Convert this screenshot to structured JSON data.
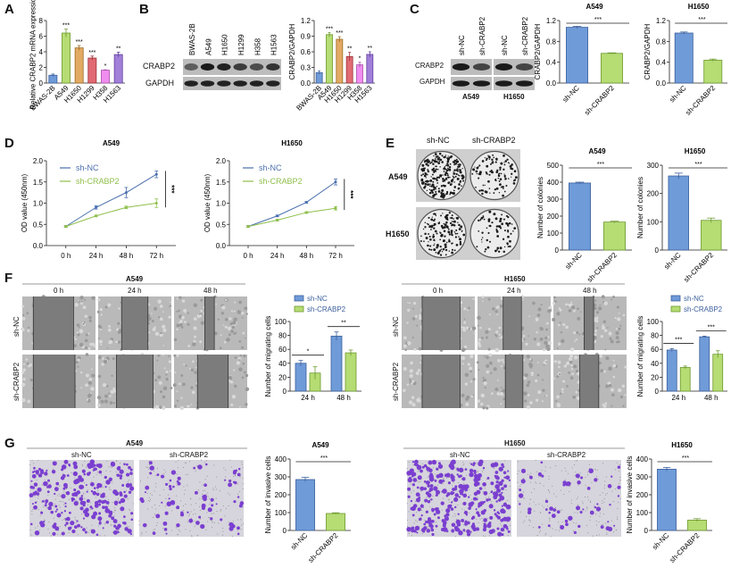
{
  "panels": {
    "A": "A",
    "B": "B",
    "C": "C",
    "D": "D",
    "E": "E",
    "F": "F",
    "G": "G"
  },
  "blots": {
    "B": {
      "lanes": [
        "BWAS-2B",
        "A549",
        "H1650",
        "H1299",
        "H358",
        "H1563"
      ],
      "rows": [
        "CRABP2",
        "GAPDH"
      ]
    },
    "C": {
      "lanes": [
        "sh-NC",
        "sh-CRABP2",
        "sh-NC",
        "sh-CRABP2"
      ],
      "rows": [
        "CRABP2",
        "GAPDH"
      ],
      "cell_lines": [
        "A549",
        "H1650"
      ]
    }
  },
  "colony": {
    "columns": [
      "sh-NC",
      "sh-CRABP2"
    ],
    "rows": [
      "A549",
      "H1650"
    ]
  },
  "wound": {
    "A549": {
      "title": "A549",
      "columns": [
        "0 h",
        "24 h",
        "48 h"
      ],
      "rows": [
        "sh-NC",
        "sh-CRABP2"
      ]
    },
    "H1650": {
      "title": "H1650",
      "columns": [
        "0 h",
        "24 h",
        "48 h"
      ],
      "rows": [
        "sh-NC",
        "sh-CRABP2"
      ]
    }
  },
  "transwell": {
    "A549": {
      "title": "A549",
      "columns": [
        "sh-NC",
        "sh-CRABP2"
      ]
    },
    "H1650": {
      "title": "H1650",
      "columns": [
        "sh-NC",
        "sh-CRABP2"
      ]
    }
  },
  "chart_data": [
    {
      "id": "A",
      "type": "bar",
      "title": "",
      "ylabel": "Relative CRABP2 mRNA expression",
      "ylim": [
        0,
        8
      ],
      "yticks": [
        0,
        2,
        4,
        6,
        8
      ],
      "categories": [
        "BWAS-2B",
        "A549",
        "H1650",
        "H1299",
        "H358",
        "H1563"
      ],
      "values": [
        1.0,
        6.4,
        4.5,
        3.2,
        1.65,
        3.65
      ],
      "errors": [
        0.15,
        0.5,
        0.3,
        0.25,
        0.05,
        0.3
      ],
      "significance": [
        "",
        "***",
        "***",
        "***",
        "*",
        "**"
      ],
      "colors": [
        "#6f9bd8",
        "#b6dc74",
        "#e2aa63",
        "#e06b73",
        "#f08ef0",
        "#a27fd8"
      ]
    },
    {
      "id": "B",
      "type": "bar",
      "title": "",
      "ylabel": "CRABP2/GAPDH",
      "ylim": [
        0,
        1.2
      ],
      "yticks": [
        "0.0",
        "0.3",
        "0.6",
        "0.9",
        "1.2"
      ],
      "categories": [
        "BWAS-2B",
        "A549",
        "H1650",
        "H1299",
        "H358",
        "H1563"
      ],
      "values": [
        0.2,
        0.93,
        0.84,
        0.51,
        0.35,
        0.55
      ],
      "errors": [
        0.03,
        0.04,
        0.05,
        0.08,
        0.05,
        0.05
      ],
      "significance": [
        "",
        "***",
        "***",
        "**",
        "*",
        "**"
      ],
      "colors": [
        "#6f9bd8",
        "#b6dc74",
        "#e2aa63",
        "#e06b73",
        "#f08ef0",
        "#a27fd8"
      ]
    },
    {
      "id": "C1",
      "type": "bar",
      "title": "A549",
      "ylabel": "CRABP2/GAPDH",
      "ylim": [
        0,
        1.2
      ],
      "yticks": [
        "0.0",
        "0.4",
        "0.8",
        "1.2"
      ],
      "categories": [
        "sh-NC",
        "sh-CRABP2"
      ],
      "values": [
        1.07,
        0.57
      ],
      "errors": [
        0.02,
        0.01
      ],
      "comparison": "***",
      "colors": [
        "#6f9bd8",
        "#b6dc74"
      ]
    },
    {
      "id": "C2",
      "type": "bar",
      "title": "H1650",
      "ylabel": "CRABP2/GAPDH",
      "ylim": [
        0,
        1.2
      ],
      "yticks": [
        "0.0",
        "0.4",
        "0.8",
        "1.2"
      ],
      "categories": [
        "sh-NC",
        "sh-CRABP2"
      ],
      "values": [
        0.96,
        0.44
      ],
      "errors": [
        0.02,
        0.02
      ],
      "comparison": "***",
      "colors": [
        "#6f9bd8",
        "#b6dc74"
      ]
    },
    {
      "id": "D1",
      "type": "line",
      "title": "A549",
      "ylabel": "OD value (450nm)",
      "ylim": [
        0,
        2
      ],
      "yticks": [
        "0.0",
        "0.5",
        "1.0",
        "1.5",
        "2.0"
      ],
      "x": [
        "0 h",
        "24 h",
        "48 h",
        "72 h"
      ],
      "comparison": "***",
      "legend": "top-left",
      "series": [
        {
          "name": "sh-NC",
          "values": [
            0.45,
            0.9,
            1.25,
            1.68
          ],
          "errors": [
            0.02,
            0.04,
            0.12,
            0.08
          ],
          "color": "#4a6fae"
        },
        {
          "name": "sh-CRABP2",
          "values": [
            0.45,
            0.7,
            0.9,
            1.0
          ],
          "errors": [
            0.02,
            0.02,
            0.03,
            0.1
          ],
          "color": "#8fbf4a"
        }
      ]
    },
    {
      "id": "D2",
      "type": "line",
      "title": "H1650",
      "ylabel": "OD value (450nm)",
      "ylim": [
        0,
        2
      ],
      "yticks": [
        "0.0",
        "0.5",
        "1.0",
        "1.5",
        "2.0"
      ],
      "x": [
        "0 h",
        "24 h",
        "48 h",
        "72 h"
      ],
      "comparison": "***",
      "legend": "top-left",
      "series": [
        {
          "name": "sh-NC",
          "values": [
            0.45,
            0.7,
            1.02,
            1.5
          ],
          "errors": [
            0.02,
            0.02,
            0.02,
            0.07
          ],
          "color": "#4a6fae"
        },
        {
          "name": "sh-CRABP2",
          "values": [
            0.45,
            0.6,
            0.78,
            0.88
          ],
          "errors": [
            0.02,
            0.02,
            0.02,
            0.04
          ],
          "color": "#8fbf4a"
        }
      ]
    },
    {
      "id": "E1",
      "type": "bar",
      "title": "A549",
      "ylabel": "Number of colonies",
      "ylim": [
        0,
        500
      ],
      "yticks": [
        0,
        100,
        200,
        300,
        400,
        500
      ],
      "categories": [
        "sh-NC",
        "sh-CRABP2"
      ],
      "values": [
        395,
        165
      ],
      "errors": [
        5,
        5
      ],
      "comparison": "***",
      "colors": [
        "#6f9bd8",
        "#b6dc74"
      ]
    },
    {
      "id": "E2",
      "type": "bar",
      "title": "H1650",
      "ylabel": "Number of colonies",
      "ylim": [
        0,
        300
      ],
      "yticks": [
        0,
        100,
        200,
        300
      ],
      "categories": [
        "sh-NC",
        "sh-CRABP2"
      ],
      "values": [
        262,
        105
      ],
      "errors": [
        10,
        8
      ],
      "comparison": "***",
      "colors": [
        "#6f9bd8",
        "#b6dc74"
      ]
    },
    {
      "id": "F1",
      "type": "grouped-bar",
      "title": "",
      "ylabel": "Number of migrating cells",
      "ylim": [
        0,
        100
      ],
      "yticks": [
        0,
        20,
        40,
        60,
        80,
        100
      ],
      "categories": [
        "24 h",
        "48 h"
      ],
      "comparisons": [
        "*",
        "**"
      ],
      "legend": "top",
      "series": [
        {
          "name": "sh-NC",
          "values": [
            40,
            79
          ],
          "errors": [
            4,
            6
          ],
          "color": "#6f9bd8"
        },
        {
          "name": "sh-CRABP2",
          "values": [
            26,
            55
          ],
          "errors": [
            9,
            4
          ],
          "color": "#b6dc74"
        }
      ]
    },
    {
      "id": "F2",
      "type": "grouped-bar",
      "title": "",
      "ylabel": "Number of migrating cells",
      "ylim": [
        0,
        100
      ],
      "yticks": [
        0,
        20,
        40,
        60,
        80,
        100
      ],
      "categories": [
        "24 h",
        "48 h"
      ],
      "comparisons": [
        "***",
        "***"
      ],
      "legend": "top",
      "series": [
        {
          "name": "sh-NC",
          "values": [
            59,
            78
          ],
          "errors": [
            2,
            1
          ],
          "color": "#6f9bd8"
        },
        {
          "name": "sh-CRABP2",
          "values": [
            34,
            53
          ],
          "errors": [
            2,
            5
          ],
          "color": "#b6dc74"
        }
      ]
    },
    {
      "id": "G1",
      "type": "bar",
      "title": "A549",
      "ylabel": "Number of invasive cells",
      "ylim": [
        0,
        400
      ],
      "yticks": [
        0,
        100,
        200,
        300,
        400
      ],
      "categories": [
        "sh-NC",
        "sh-CRABP2"
      ],
      "values": [
        285,
        95
      ],
      "errors": [
        12,
        4
      ],
      "comparison": "***",
      "colors": [
        "#6f9bd8",
        "#b6dc74"
      ]
    },
    {
      "id": "G2",
      "type": "bar",
      "title": "H1650",
      "ylabel": "Number of invasive cells",
      "ylim": [
        0,
        400
      ],
      "yticks": [
        0,
        100,
        200,
        300,
        400
      ],
      "categories": [
        "sh-NC",
        "sh-CRABP2"
      ],
      "values": [
        343,
        58
      ],
      "errors": [
        10,
        8
      ],
      "comparison": "***",
      "colors": [
        "#6f9bd8",
        "#b6dc74"
      ]
    }
  ]
}
